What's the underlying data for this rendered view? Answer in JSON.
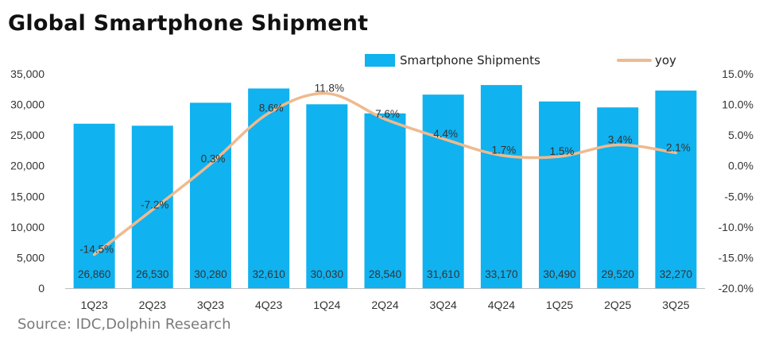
{
  "title": "Global Smartphone Shipment",
  "source": "Source: IDC,Dolphin Research",
  "colors": {
    "bar": "#10b2ef",
    "line": "#efba8e"
  },
  "chart_data": {
    "type": "bar",
    "categories": [
      "1Q23",
      "2Q23",
      "3Q23",
      "4Q23",
      "1Q24",
      "2Q24",
      "3Q24",
      "4Q24",
      "1Q25",
      "2Q25",
      "3Q25"
    ],
    "series": [
      {
        "name": "Smartphone Shipments",
        "type": "bar",
        "axis": "left",
        "values": [
          26860,
          26530,
          30280,
          32610,
          30030,
          28540,
          31610,
          33170,
          30490,
          29520,
          32270
        ]
      },
      {
        "name": "yoy",
        "type": "line",
        "axis": "right",
        "values": [
          -14.5,
          -7.2,
          0.3,
          8.6,
          11.8,
          7.6,
          4.4,
          1.7,
          1.5,
          3.4,
          2.1
        ]
      }
    ],
    "bar_labels": [
      "26,860",
      "26,530",
      "30,280",
      "32,610",
      "30,030",
      "28,540",
      "31,610",
      "33,170",
      "30,490",
      "29,520",
      "32,270"
    ],
    "line_labels": [
      "-14.5%",
      "-7.2%",
      "0.3%",
      "8.6%",
      "11.8%",
      "7.6%",
      "4.4%",
      "1.7%",
      "1.5%",
      "3.4%",
      "2.1%"
    ],
    "y_left": {
      "ticks": [
        "0",
        "5,000",
        "10,000",
        "15,000",
        "20,000",
        "25,000",
        "30,000",
        "35,000"
      ],
      "range": [
        0,
        35000
      ]
    },
    "y_right": {
      "ticks": [
        "-20.0%",
        "-15.0%",
        "-10.0%",
        "-5.0%",
        "0.0%",
        "5.0%",
        "10.0%",
        "15.0%"
      ],
      "range": [
        -20,
        15
      ]
    },
    "legend": [
      {
        "label": "Smartphone Shipments",
        "kind": "bar"
      },
      {
        "label": "yoy",
        "kind": "line"
      }
    ],
    "legend_position": "top",
    "grid": false
  }
}
